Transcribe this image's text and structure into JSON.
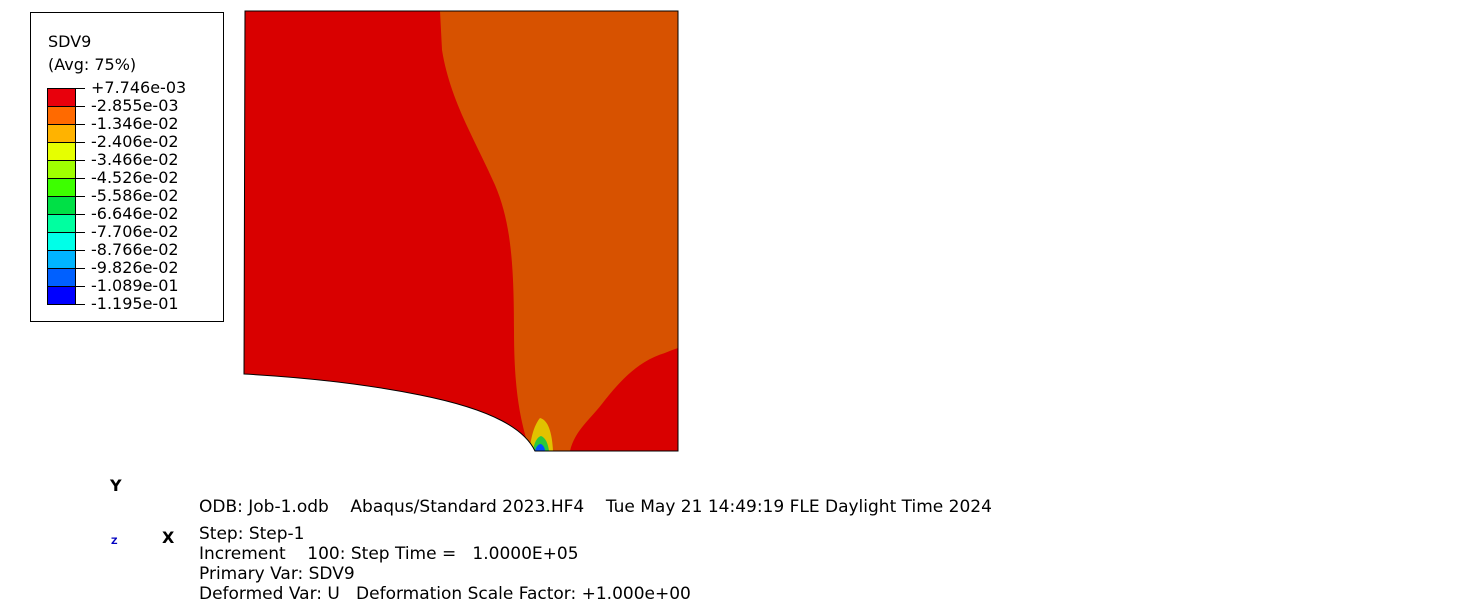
{
  "legend": {
    "variable": "SDV9",
    "averaging": "(Avg: 75%)",
    "labels": [
      "+7.746e-03",
      "-2.855e-03",
      "-1.346e-02",
      "-2.406e-02",
      "-3.466e-02",
      "-4.526e-02",
      "-5.586e-02",
      "-6.646e-02",
      "-7.706e-02",
      "-8.766e-02",
      "-9.826e-02",
      "-1.089e-01",
      "-1.195e-01"
    ],
    "colors": [
      "#e8000c",
      "#ff6a00",
      "#ffb300",
      "#e6ff00",
      "#9fff00",
      "#3dff00",
      "#00e046",
      "#00ffa0",
      "#00ffe8",
      "#00b4ff",
      "#0060ff",
      "#0000ff"
    ]
  },
  "contour": {
    "colors": {
      "red": "#d90000",
      "orange": "#d75200",
      "yellow": "#e1c200",
      "green": "#28c83c",
      "blue": "#0050ff"
    }
  },
  "triad": {
    "y_label": "Y",
    "x_label": "X",
    "z_label": "Z"
  },
  "info": {
    "line1": "ODB: Job-1.odb    Abaqus/Standard 2023.HF4    Tue May 21 14:49:19 FLE Daylight Time 2024",
    "line2": "Step: Step-1",
    "line3": "Increment    100: Step Time =   1.0000E+05",
    "line4": "Primary Var: SDV9",
    "line5": "Deformed Var: U   Deformation Scale Factor: +1.000e+00"
  }
}
